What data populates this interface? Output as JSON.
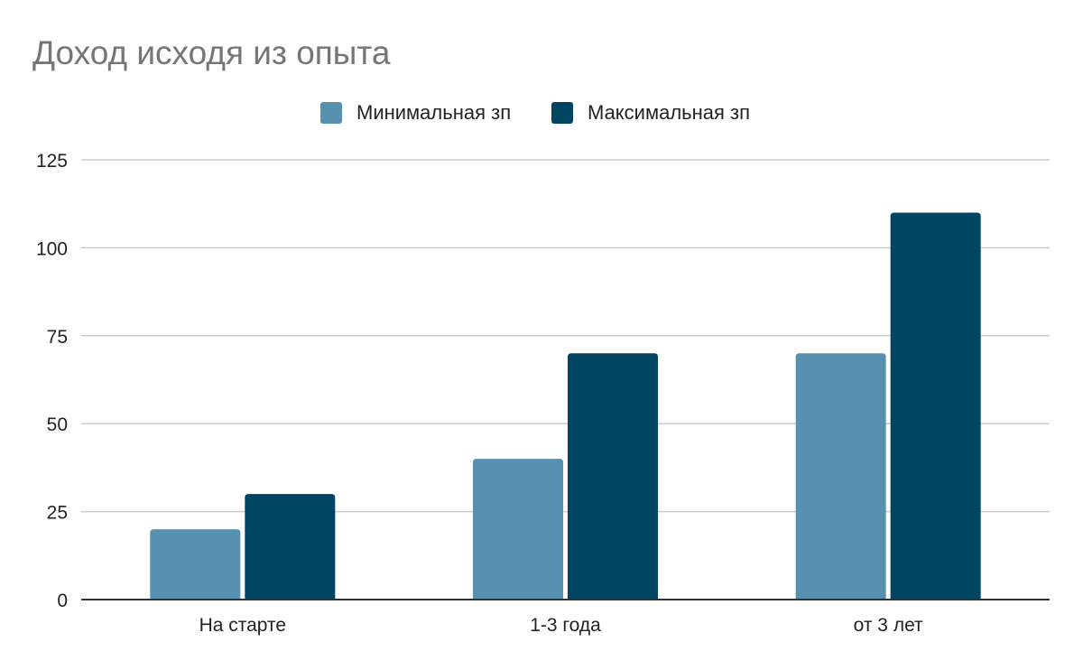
{
  "title": "Доход исходя из опыта",
  "colors": {
    "series_min": "#5891b0",
    "series_max": "#004561",
    "grid": "#cccccc",
    "axis": "#333333",
    "title": "#757575",
    "text": "#222222"
  },
  "legend": {
    "position": "top",
    "items": [
      {
        "label": "Минимальная зп"
      },
      {
        "label": "Максимальная зп"
      }
    ]
  },
  "chart_data": {
    "type": "bar",
    "title": "Доход исходя из опыта",
    "categories": [
      "На старте",
      "1-3 года",
      "от 3 лет"
    ],
    "series": [
      {
        "name": "Минимальная зп",
        "values": [
          20,
          40,
          70
        ]
      },
      {
        "name": "Максимальная зп",
        "values": [
          30,
          70,
          110
        ]
      }
    ],
    "xlabel": "",
    "ylabel": "",
    "ylim": [
      0,
      125
    ],
    "yticks": [
      0,
      25,
      50,
      75,
      100,
      125
    ],
    "grid": true,
    "legend_position": "top"
  }
}
